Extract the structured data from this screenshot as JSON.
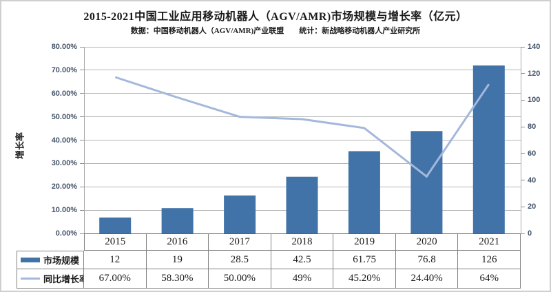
{
  "title": "2015-2021中国工业应用移动机器人（AGV/AMR)市场规模与增长率（亿元）",
  "subtitle": "数据：中国移动机器人（AGV/AMR)产业联盟　　统计：新战略移动机器人产业研究所",
  "colors": {
    "bar": "#4173A8",
    "line": "#A4B8DC",
    "gridline": "#b3b3b3",
    "axis_line": "#595959",
    "tick_label": "#44546A",
    "table_border": "#808080"
  },
  "chart_data": {
    "type": "bar",
    "subtype": "combo-bar-line-with-data-table",
    "categories": [
      "2015",
      "2016",
      "2017",
      "2018",
      "2019",
      "2020",
      "2021"
    ],
    "series": [
      {
        "name": "市场规模",
        "type": "bar",
        "axis": "right",
        "values": [
          12,
          19,
          28.5,
          42.5,
          61.75,
          76.8,
          126
        ],
        "labels": [
          "12",
          "19",
          "28.5",
          "42.5",
          "61.75",
          "76.8",
          "126"
        ],
        "color": "#4173A8"
      },
      {
        "name": "同比增长率",
        "type": "line",
        "axis": "left",
        "values": [
          67.0,
          58.3,
          50.0,
          49.0,
          45.2,
          24.4,
          64.0
        ],
        "labels": [
          "67.00%",
          "58.30%",
          "50.00%",
          "49%",
          "45.20%",
          "24.40%",
          "64%"
        ],
        "color": "#A4B8DC"
      }
    ],
    "left_axis": {
      "title": "增长率",
      "min": 0,
      "max": 80,
      "step": 10,
      "tick_labels": [
        "0.00%",
        "10.00%",
        "20.00%",
        "30.00%",
        "40.00%",
        "50.00%",
        "60.00%",
        "70.00%",
        "80.00%"
      ]
    },
    "right_axis": {
      "min": 0,
      "max": 140,
      "step": 20,
      "tick_labels": [
        "0",
        "20",
        "40",
        "60",
        "80",
        "100",
        "120",
        "140"
      ]
    },
    "grid": true,
    "legend_position": "table-left"
  }
}
